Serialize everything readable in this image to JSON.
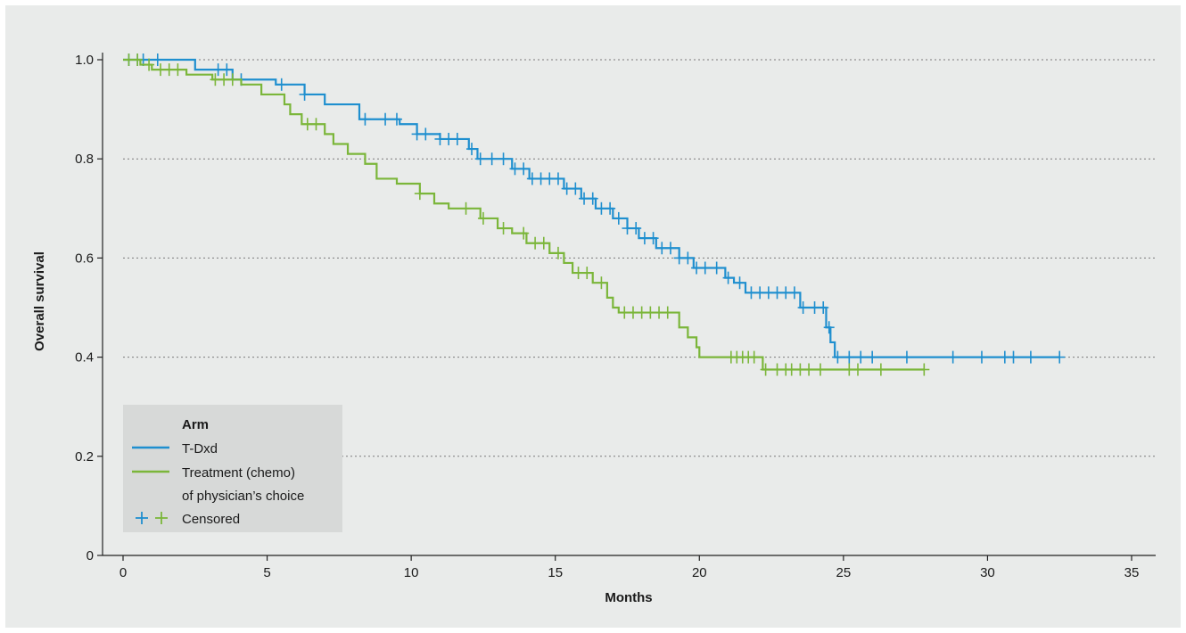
{
  "chart_data": {
    "type": "line",
    "subtype": "kaplan-meier step",
    "xlabel": "Months",
    "ylabel": "Overall survival",
    "xlim": [
      0,
      35
    ],
    "ylim": [
      0,
      1.05
    ],
    "x_ticks": [
      0,
      5,
      10,
      15,
      20,
      25,
      30,
      35
    ],
    "y_ticks": [
      0,
      0.2,
      0.4,
      0.6,
      0.8,
      1.0
    ],
    "x_tick_labels": [
      "0",
      "5",
      "10",
      "15",
      "20",
      "25",
      "30",
      "35"
    ],
    "y_tick_labels": [
      "0",
      "0.2",
      "0.4",
      "0.6",
      "0.8",
      "1.0"
    ],
    "grid": "horizontal dotted",
    "legend": {
      "placement": "bottom-left",
      "title": "Arm",
      "entries": [
        {
          "label": "T-Dxd",
          "color": "#1f8fcf"
        },
        {
          "label_lines": [
            "Treatment (chemo)",
            "of physician’s choice"
          ],
          "color": "#7bb63a"
        },
        {
          "label": "Censored",
          "marker": "+"
        }
      ]
    },
    "series": [
      {
        "name": "T-Dxd",
        "color": "#1f8fcf",
        "steps": [
          [
            0,
            1.0
          ],
          [
            2.5,
            0.98
          ],
          [
            3.8,
            0.96
          ],
          [
            5.3,
            0.95
          ],
          [
            6.3,
            0.93
          ],
          [
            7.0,
            0.91
          ],
          [
            8.2,
            0.88
          ],
          [
            9.6,
            0.87
          ],
          [
            10.2,
            0.85
          ],
          [
            11.0,
            0.84
          ],
          [
            12.0,
            0.82
          ],
          [
            12.3,
            0.8
          ],
          [
            13.5,
            0.78
          ],
          [
            14.1,
            0.76
          ],
          [
            15.3,
            0.74
          ],
          [
            15.9,
            0.72
          ],
          [
            16.4,
            0.7
          ],
          [
            17.0,
            0.68
          ],
          [
            17.5,
            0.66
          ],
          [
            17.9,
            0.64
          ],
          [
            18.5,
            0.62
          ],
          [
            19.3,
            0.6
          ],
          [
            19.8,
            0.58
          ],
          [
            20.9,
            0.56
          ],
          [
            21.2,
            0.55
          ],
          [
            21.6,
            0.53
          ],
          [
            23.5,
            0.5
          ],
          [
            24.4,
            0.46
          ],
          [
            24.55,
            0.43
          ],
          [
            24.7,
            0.4
          ],
          [
            32.5,
            0.4
          ]
        ],
        "censored": [
          0.2,
          0.5,
          0.7,
          1.2,
          3.3,
          3.6,
          4.1,
          5.5,
          6.3,
          8.4,
          9.1,
          9.5,
          10.2,
          10.5,
          11.0,
          11.3,
          11.6,
          12.1,
          12.4,
          12.8,
          13.2,
          13.6,
          13.9,
          14.2,
          14.5,
          14.8,
          15.1,
          15.4,
          15.7,
          16.0,
          16.3,
          16.6,
          16.9,
          17.2,
          17.5,
          17.8,
          18.1,
          18.4,
          18.7,
          19.0,
          19.3,
          19.6,
          19.9,
          20.2,
          20.6,
          21.0,
          21.4,
          21.8,
          22.1,
          22.4,
          22.7,
          23.0,
          23.3,
          23.6,
          24.0,
          24.3,
          24.5,
          24.8,
          25.2,
          25.6,
          26.0,
          27.2,
          28.8,
          29.8,
          30.6,
          30.9,
          31.5,
          32.5
        ]
      },
      {
        "name": "Treatment (chemo) of physician’s choice",
        "color": "#7bb63a",
        "steps": [
          [
            0,
            1.0
          ],
          [
            0.6,
            0.99
          ],
          [
            1.0,
            0.98
          ],
          [
            2.2,
            0.97
          ],
          [
            3.1,
            0.96
          ],
          [
            4.1,
            0.95
          ],
          [
            4.8,
            0.93
          ],
          [
            5.6,
            0.91
          ],
          [
            5.8,
            0.89
          ],
          [
            6.2,
            0.87
          ],
          [
            7.0,
            0.85
          ],
          [
            7.3,
            0.83
          ],
          [
            7.8,
            0.81
          ],
          [
            8.4,
            0.79
          ],
          [
            8.8,
            0.76
          ],
          [
            9.5,
            0.75
          ],
          [
            10.3,
            0.73
          ],
          [
            10.8,
            0.71
          ],
          [
            11.3,
            0.7
          ],
          [
            12.4,
            0.68
          ],
          [
            13.0,
            0.66
          ],
          [
            13.5,
            0.65
          ],
          [
            14.0,
            0.63
          ],
          [
            14.8,
            0.61
          ],
          [
            15.3,
            0.59
          ],
          [
            15.6,
            0.57
          ],
          [
            16.3,
            0.55
          ],
          [
            16.8,
            0.52
          ],
          [
            17.0,
            0.5
          ],
          [
            17.2,
            0.49
          ],
          [
            19.3,
            0.46
          ],
          [
            19.6,
            0.44
          ],
          [
            19.9,
            0.42
          ],
          [
            20.0,
            0.4
          ],
          [
            22.2,
            0.375
          ],
          [
            27.8,
            0.375
          ]
        ],
        "censored": [
          0.2,
          0.5,
          0.9,
          1.3,
          1.6,
          1.9,
          3.2,
          3.5,
          3.8,
          6.4,
          6.7,
          10.3,
          11.9,
          12.5,
          13.2,
          13.9,
          14.3,
          14.6,
          15.1,
          15.8,
          16.1,
          16.6,
          17.4,
          17.7,
          18.0,
          18.3,
          18.6,
          18.9,
          21.1,
          21.3,
          21.5,
          21.7,
          21.9,
          22.3,
          22.7,
          23.0,
          23.2,
          23.5,
          23.8,
          24.2,
          25.2,
          25.5,
          26.3,
          27.8
        ]
      }
    ]
  }
}
